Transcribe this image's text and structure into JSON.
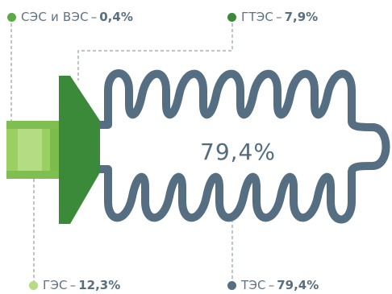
{
  "colors": {
    "tes": "#566e82",
    "ges": "#9ccf62",
    "gtes": "#3a8a3a",
    "ses_ves": "#5aaa45",
    "leader": "#a9b2b8",
    "text": "#5e7384"
  },
  "center_value": "79,4%",
  "labels": {
    "ses_ves": {
      "name": "СЭС и ВЭС",
      "sep": "–",
      "value": "0,4%"
    },
    "gtes": {
      "name": "ГТЭС",
      "sep": "–",
      "value": "7,9%"
    },
    "ges": {
      "name": "ГЭС",
      "sep": "–",
      "value": "12,3%"
    },
    "tes": {
      "name": "ТЭС",
      "sep": "–",
      "value": "79,4%"
    }
  }
}
